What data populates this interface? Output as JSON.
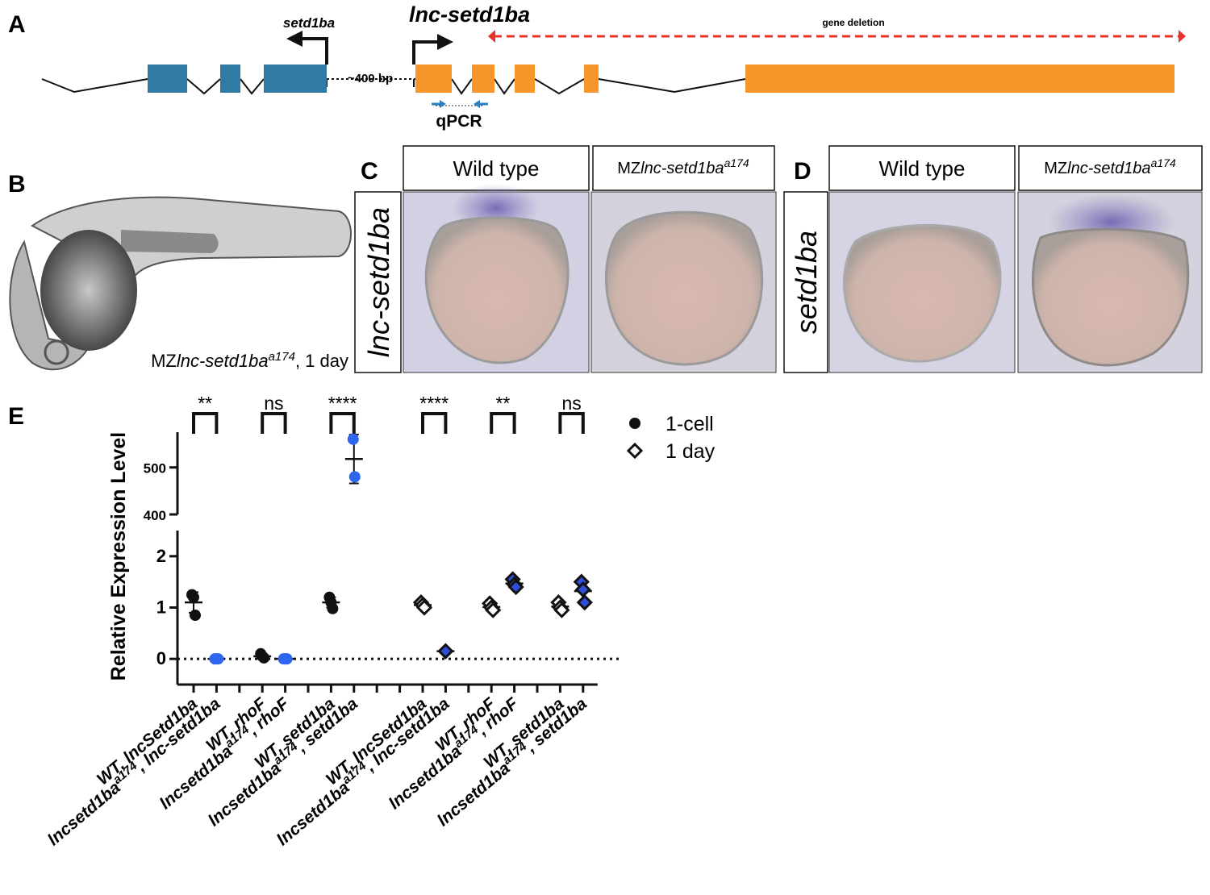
{
  "panels": {
    "A": {
      "label": "A",
      "gene_left": "setd1ba",
      "gene_right": "lnc-setd1ba",
      "deletion": "gene deletion",
      "spacer": "~400 bp",
      "primers": "qPCR"
    },
    "B": {
      "label": "B",
      "caption": [
        "MZ",
        "lnc-setd1ba",
        "a174",
        ", 1 day"
      ]
    },
    "C": {
      "label": "C",
      "columns": [
        "Wild type",
        [
          "MZ",
          "lnc-setd1ba",
          "a174"
        ]
      ],
      "row": "lnc-setd1ba"
    },
    "D": {
      "label": "D",
      "columns": [
        "Wild type",
        [
          "MZ",
          "lnc-setd1ba",
          "a174"
        ]
      ],
      "row": "setd1ba"
    },
    "E": {
      "label": "E"
    }
  },
  "chart_data": {
    "type": "dot",
    "ylabel": "Relative Expression Level",
    "categories": [
      [
        "WT, lncSetd1ba"
      ],
      [
        "lncsetd1ba",
        "a174",
        ", lnc-setd1ba"
      ],
      null,
      [
        "WT, rhoF"
      ],
      [
        "lncsetd1ba",
        "a174",
        ", rhoF"
      ],
      null,
      [
        "WT, setd1ba"
      ],
      [
        "lncsetd1ba",
        "a174",
        ", setd1ba"
      ],
      null,
      null,
      [
        "WT, lncSetd1ba"
      ],
      [
        "lncsetd1ba",
        "a174",
        ", lnc-setd1ba"
      ],
      null,
      [
        "WT, rhoF"
      ],
      [
        "lncsetd1ba",
        "a174",
        ", rhoF"
      ],
      null,
      [
        "WT, setd1ba"
      ],
      [
        "lncsetd1ba",
        "a174",
        ", setd1ba"
      ]
    ],
    "ylim": [
      -0.5,
      2.5
    ],
    "yticks": [
      0,
      1,
      2
    ],
    "ylim_upper": [
      400,
      575
    ],
    "yticks_upper": [
      400,
      500
    ],
    "zero_line": true,
    "significance": [
      "**",
      "ns",
      "****",
      "****",
      "**",
      "ns"
    ],
    "series": [
      {
        "name": "1-cell",
        "marker": "circle",
        "color": "#111111",
        "point_colors": [
          "#111111",
          "#2f66f0",
          null,
          "#111111",
          "#2f66f0",
          null,
          "#111111",
          "#2f66f0",
          null,
          null,
          null,
          null,
          null,
          null,
          null,
          null,
          null,
          null
        ],
        "values": [
          [
            1.25,
            1.2,
            0.85
          ],
          [
            0,
            0,
            0
          ],
          null,
          [
            0.1,
            0.05,
            0.02
          ],
          [
            0,
            0,
            0
          ],
          null,
          [
            1.2,
            1.1,
            0.98
          ],
          [
            560,
            480
          ],
          null,
          null,
          null,
          null,
          null,
          null,
          null,
          null,
          null,
          null
        ],
        "mean": [
          1.1,
          0,
          null,
          0.05,
          0,
          null,
          1.1,
          518,
          null,
          null,
          null,
          null,
          null,
          null,
          null,
          null,
          null,
          null
        ],
        "sd": [
          0.2,
          0,
          null,
          0.04,
          0,
          null,
          0.1,
          52,
          null,
          null,
          null,
          null,
          null,
          null,
          null,
          null,
          null,
          null
        ]
      },
      {
        "name": "1 day",
        "marker": "diamond",
        "color": "#ffffff",
        "point_colors": [
          null,
          null,
          null,
          null,
          null,
          null,
          null,
          null,
          null,
          null,
          "#ffffff",
          "#2f4fd8",
          null,
          "#ffffff",
          "#2f4fd8",
          null,
          "#ffffff",
          "#2f4fd8"
        ],
        "values": [
          null,
          null,
          null,
          null,
          null,
          null,
          null,
          null,
          null,
          null,
          [
            1.1,
            1.05,
            1.0
          ],
          [
            0.15
          ],
          null,
          [
            1.08,
            1.0,
            0.95
          ],
          [
            1.55,
            1.45,
            1.4
          ],
          null,
          [
            1.1,
            1.0,
            0.95
          ],
          [
            1.5,
            1.35,
            1.1
          ]
        ],
        "mean": [
          null,
          null,
          null,
          null,
          null,
          null,
          null,
          null,
          null,
          null,
          1.05,
          0.15,
          null,
          1.01,
          1.47,
          null,
          1.02,
          1.32
        ],
        "sd": [
          null,
          null,
          null,
          null,
          null,
          null,
          null,
          null,
          null,
          null,
          0.05,
          0.02,
          null,
          0.07,
          0.08,
          null,
          0.08,
          0.2
        ]
      }
    ]
  }
}
